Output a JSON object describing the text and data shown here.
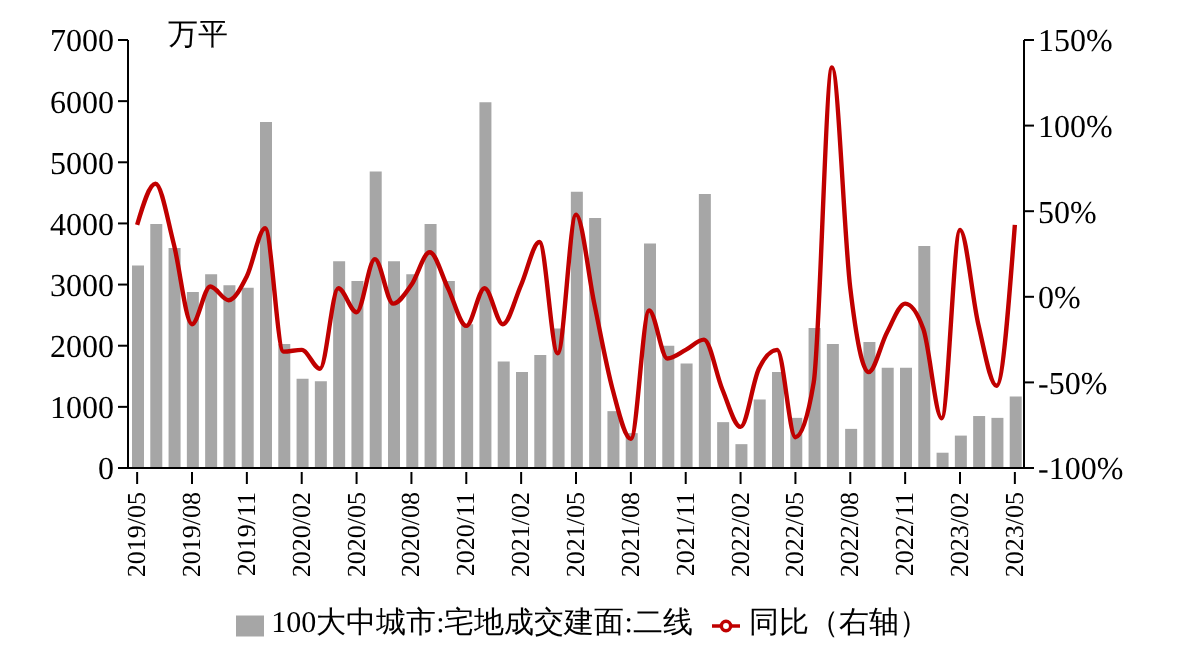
{
  "chart_data": {
    "type": "bar",
    "ylabel": "万平",
    "categories": [
      "2019/05",
      null,
      null,
      "2019/08",
      null,
      null,
      "2019/11",
      null,
      null,
      "2020/02",
      null,
      null,
      "2020/05",
      null,
      null,
      "2020/08",
      null,
      null,
      "2020/11",
      null,
      null,
      "2021/02",
      null,
      null,
      "2021/05",
      null,
      null,
      "2021/08",
      null,
      null,
      "2021/11",
      null,
      null,
      "2022/02",
      null,
      null,
      "2022/05",
      null,
      null,
      "2022/08",
      null,
      null,
      "2022/11",
      null,
      null,
      "2023/02",
      null,
      null,
      "2023/05"
    ],
    "series": [
      {
        "name": "100大中城市:宅地成交建面:二线",
        "color": "#a6a6a6",
        "values": [
          3310,
          3990,
          3600,
          2880,
          3170,
          2990,
          2950,
          5660,
          2030,
          1460,
          1420,
          3380,
          3060,
          4850,
          3380,
          3170,
          3990,
          3060,
          2350,
          5980,
          1740,
          1570,
          1850,
          2280,
          4520,
          4090,
          930,
          570,
          3670,
          2000,
          1710,
          4480,
          750,
          390,
          1120,
          1570,
          820,
          2290,
          2030,
          640,
          2060,
          1640,
          1640,
          3630,
          250,
          530,
          850,
          820,
          1170
        ]
      },
      {
        "name": "同比（右轴）",
        "type": "line",
        "axis": "y2",
        "color": "#c00000",
        "values": [
          42,
          66,
          31,
          -16,
          6,
          -2,
          12,
          40,
          -32,
          -31,
          -42,
          5,
          -9,
          22,
          -4,
          7,
          26,
          5,
          -17,
          5,
          -16,
          7,
          32,
          -33,
          48,
          -4,
          -54,
          -83,
          -8,
          -36,
          -31,
          -25,
          -54,
          -76,
          -42,
          -31,
          -82,
          -50,
          134,
          5,
          -44,
          -21,
          -4,
          -19,
          -71,
          39,
          -16,
          -52,
          42
        ]
      }
    ],
    "ylim": [
      0,
      7000
    ],
    "yticks": [
      0,
      1000,
      2000,
      3000,
      4000,
      5000,
      6000,
      7000
    ],
    "y2lim": [
      -100,
      150
    ],
    "y2ticks": [
      {
        "value": -100,
        "label": "-100%"
      },
      {
        "value": -50,
        "label": "-50%"
      },
      {
        "value": 0,
        "label": "0%"
      },
      {
        "value": 50,
        "label": "50%"
      },
      {
        "value": 100,
        "label": "100%"
      },
      {
        "value": 150,
        "label": "150%"
      }
    ],
    "legend": "bottom",
    "marker": "none",
    "line_style": "solid"
  }
}
